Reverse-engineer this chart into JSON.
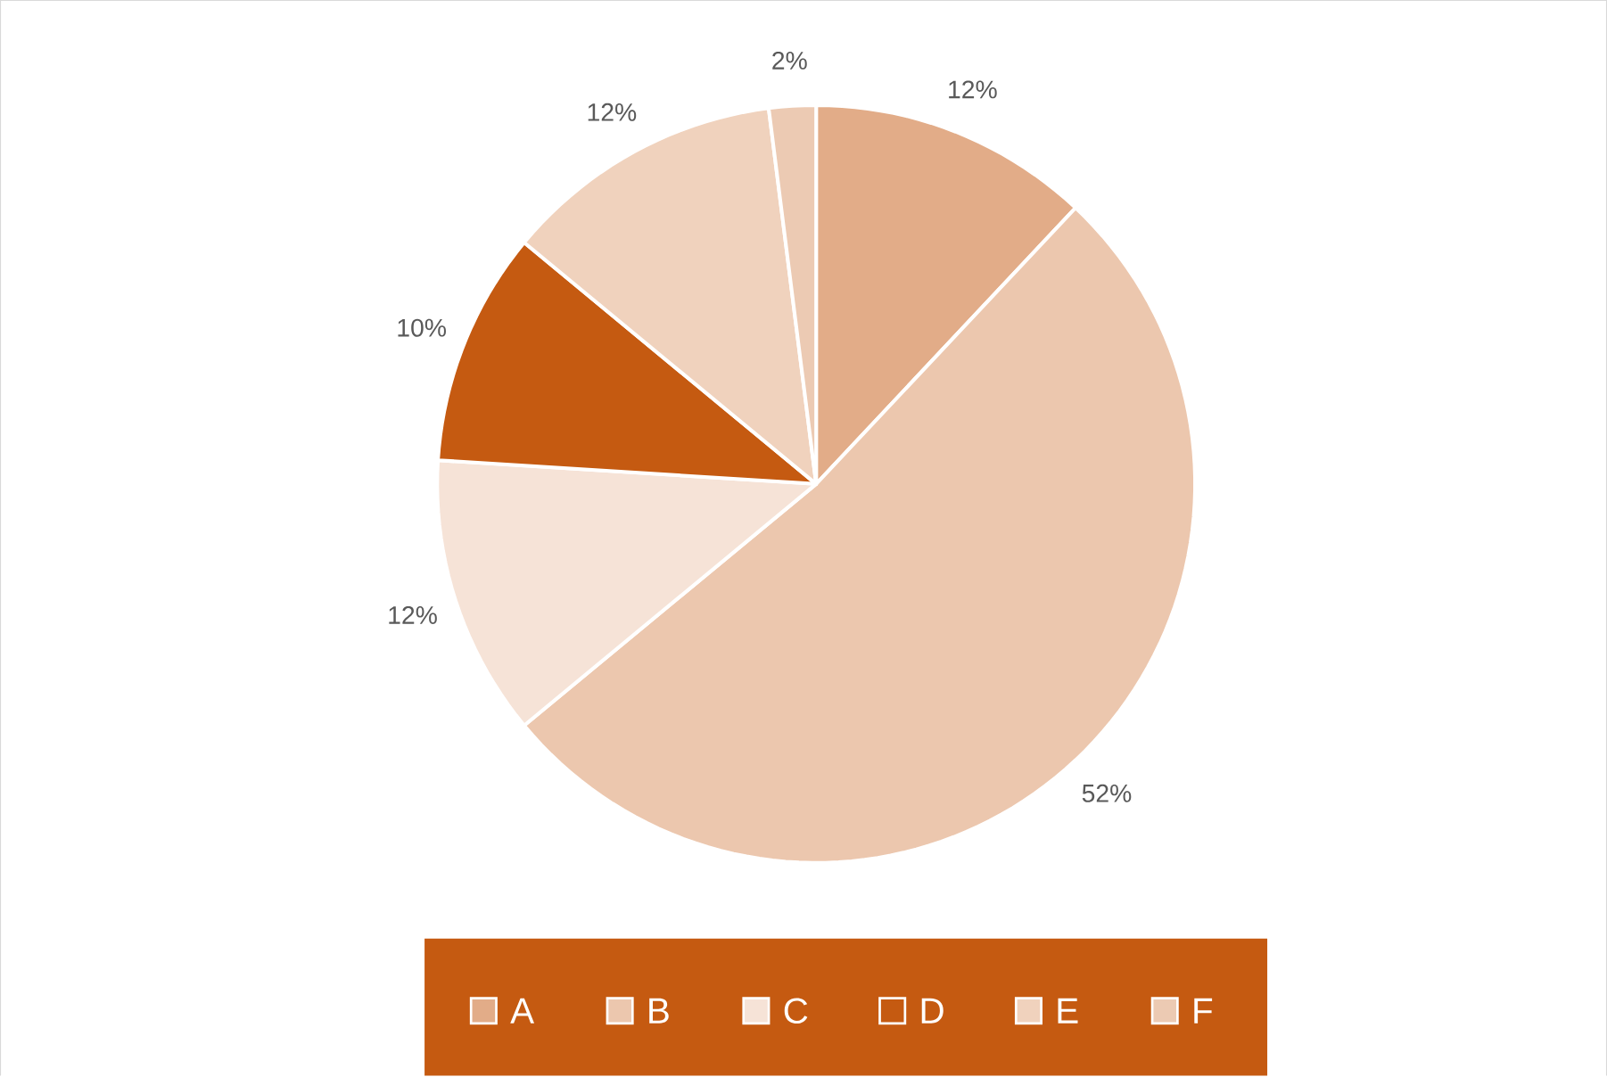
{
  "chart_data": {
    "type": "pie",
    "categories": [
      "A",
      "B",
      "C",
      "D",
      "E",
      "F"
    ],
    "values": [
      12,
      52,
      12,
      10,
      12,
      2
    ],
    "value_labels": [
      "12%",
      "52%",
      "12%",
      "10%",
      "12%",
      "2%"
    ],
    "colors": [
      "#e2ac88",
      "#ecc7ae",
      "#f6e3d7",
      "#c55a11",
      "#f0d2bd",
      "#eccab3"
    ],
    "legend": "bottom"
  }
}
